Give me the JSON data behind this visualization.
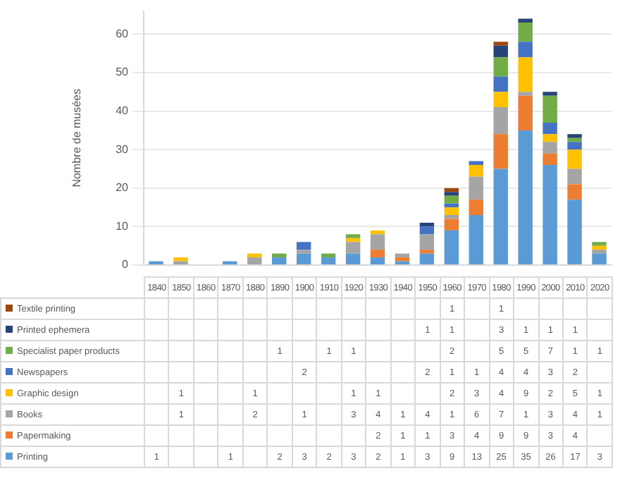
{
  "chart_data": {
    "type": "bar",
    "stacked": true,
    "ylabel": "Nombre de musées",
    "categories": [
      "1840",
      "1850",
      "1860",
      "1870",
      "1880",
      "1890",
      "1900",
      "1910",
      "1920",
      "1930",
      "1940",
      "1950",
      "1960",
      "1970",
      "1980",
      "1990",
      "2000",
      "2010",
      "2020"
    ],
    "series": [
      {
        "name": "Printing",
        "color": "#5b9bd5",
        "values": [
          1,
          null,
          null,
          1,
          null,
          2,
          3,
          2,
          3,
          2,
          1,
          3,
          9,
          13,
          25,
          35,
          26,
          17,
          3
        ]
      },
      {
        "name": "Papermaking",
        "color": "#ed7d31",
        "values": [
          null,
          null,
          null,
          null,
          null,
          null,
          null,
          null,
          null,
          2,
          1,
          1,
          3,
          4,
          9,
          9,
          3,
          4,
          null
        ]
      },
      {
        "name": "Books",
        "color": "#a5a5a5",
        "values": [
          null,
          1,
          null,
          null,
          2,
          null,
          1,
          null,
          3,
          4,
          1,
          4,
          1,
          6,
          7,
          1,
          3,
          4,
          1
        ]
      },
      {
        "name": "Graphic design",
        "color": "#ffc000",
        "values": [
          null,
          1,
          null,
          null,
          1,
          null,
          null,
          null,
          1,
          1,
          null,
          null,
          2,
          3,
          4,
          9,
          2,
          5,
          1
        ]
      },
      {
        "name": "Newspapers",
        "color": "#4472c4",
        "values": [
          null,
          null,
          null,
          null,
          null,
          null,
          2,
          null,
          null,
          null,
          null,
          2,
          1,
          1,
          4,
          4,
          3,
          2,
          null
        ]
      },
      {
        "name": "Specialist paper products",
        "color": "#70ad47",
        "values": [
          null,
          null,
          null,
          null,
          null,
          1,
          null,
          1,
          1,
          null,
          null,
          null,
          2,
          null,
          5,
          5,
          7,
          1,
          1
        ]
      },
      {
        "name": "Printed ephemera",
        "color": "#264478",
        "values": [
          null,
          null,
          null,
          null,
          null,
          null,
          null,
          null,
          null,
          null,
          null,
          1,
          1,
          null,
          3,
          1,
          1,
          1,
          null
        ]
      },
      {
        "name": "Textile printing",
        "color": "#9e480e",
        "values": [
          null,
          null,
          null,
          null,
          null,
          null,
          null,
          null,
          null,
          null,
          null,
          null,
          1,
          null,
          1,
          null,
          null,
          null,
          null
        ]
      }
    ],
    "ylim": [
      0,
      66
    ],
    "yticks": [
      0,
      10,
      20,
      30,
      40,
      50,
      60
    ],
    "grid": "y",
    "legend": "bottom",
    "data_labels": true
  }
}
